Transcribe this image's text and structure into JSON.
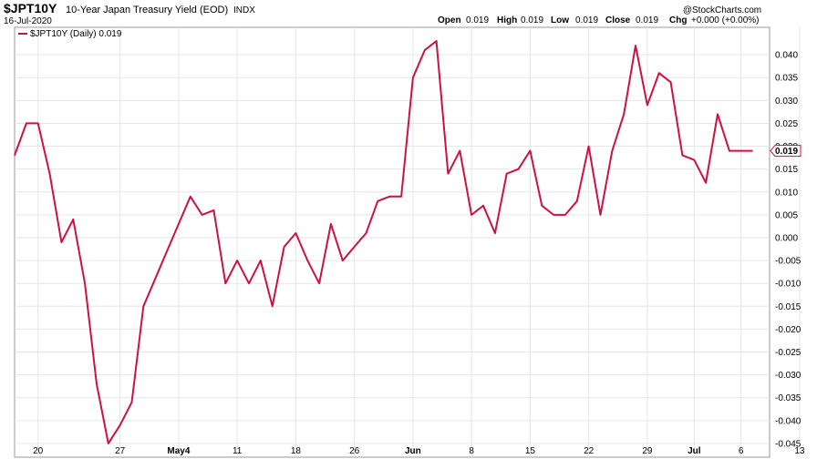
{
  "header": {
    "ticker": "$JPT10Y",
    "name": "10-Year Japan Treasury Yield (EOD)",
    "exchange": "INDX",
    "date": "16-Jul-2020",
    "open_label": "Open",
    "open": "0.019",
    "high_label": "High",
    "high": "0.019",
    "low_label": "Low",
    "low": "0.019",
    "close_label": "Close",
    "close": "0.019",
    "chg_label": "Chg",
    "chg": "+0.000 (+0.00%)",
    "watermark": "@StockCharts.com"
  },
  "legend": {
    "label": "$JPT10Y (Daily) 0.019"
  },
  "colors": {
    "line": "#cc1144",
    "grid": "#e6e6e6",
    "last_badge": "#cc1144"
  },
  "chart_data": {
    "type": "line",
    "series": [
      {
        "name": "$JPT10Y (Daily) 0.019",
        "values": [
          0.018,
          0.025,
          0.025,
          0.014,
          -0.001,
          0.004,
          -0.01,
          -0.032,
          -0.045,
          -0.041,
          -0.036,
          -0.015,
          -0.009,
          -0.003,
          0.003,
          0.009,
          0.005,
          0.006,
          -0.01,
          -0.005,
          -0.01,
          -0.005,
          -0.015,
          -0.002,
          0.001,
          -0.005,
          -0.01,
          0.003,
          -0.005,
          -0.002,
          0.001,
          0.008,
          0.009,
          0.009,
          0.035,
          0.041,
          0.043,
          0.014,
          0.019,
          0.005,
          0.007,
          0.001,
          0.014,
          0.015,
          0.019,
          0.007,
          0.005,
          0.005,
          0.008,
          0.02,
          0.005,
          0.019,
          0.027,
          0.042,
          0.029,
          0.036,
          0.034,
          0.018,
          0.017,
          0.012,
          0.027,
          0.019,
          0.019,
          0.019
        ]
      }
    ],
    "x_tick_labels": [
      "20",
      "27",
      "May4",
      "11",
      "18",
      "26",
      "Jun",
      "8",
      "15",
      "22",
      "29",
      "Jul",
      "6",
      "13"
    ],
    "x_tick_index": [
      2,
      9,
      14,
      19,
      24,
      29,
      34,
      39,
      44,
      49,
      54,
      58,
      62,
      67
    ],
    "bold_ticks": [
      "May4",
      "Jun",
      "Jul"
    ],
    "y_ticks": [
      0.04,
      0.035,
      0.03,
      0.025,
      0.02,
      0.015,
      0.01,
      0.005,
      0.0,
      -0.005,
      -0.01,
      -0.015,
      -0.02,
      -0.025,
      -0.03,
      -0.035,
      -0.04,
      -0.045
    ],
    "y_tick_labels": [
      "0.040",
      "0.035",
      "0.030",
      "0.025",
      "0.020",
      "0.015",
      "0.010",
      "0.005",
      "0.000",
      "-0.005",
      "-0.010",
      "-0.015",
      "-0.020",
      "-0.025",
      "-0.030",
      "-0.035",
      "-0.040",
      "-0.045"
    ],
    "ylim": [
      -0.048,
      0.046
    ],
    "last_value_label": "0.019",
    "grid": true
  }
}
